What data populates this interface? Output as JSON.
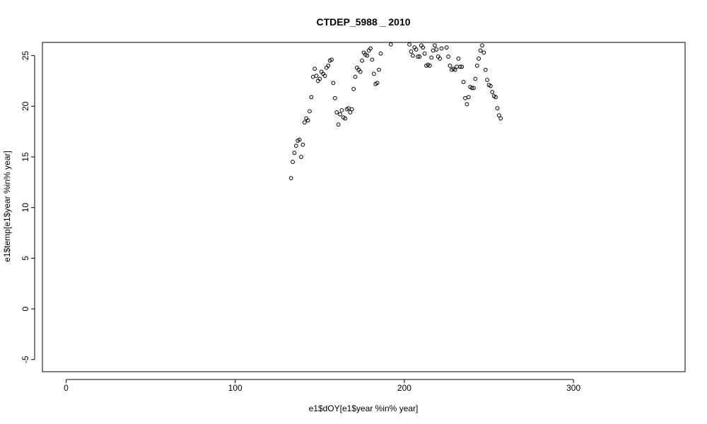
{
  "chart_data": {
    "type": "scatter",
    "title": "CTDEP_5988 _ 2010",
    "xlabel": "e1$dOY[e1$year %in% year]",
    "ylabel": "e1$temp[e1$year %in% year]",
    "xlim": [
      -14,
      366
    ],
    "ylim": [
      -6.2,
      26.3
    ],
    "xticks": [
      0,
      100,
      200,
      300
    ],
    "yticks": [
      -5,
      0,
      5,
      10,
      15,
      20,
      25
    ],
    "grid": false,
    "legend": "none",
    "marker": "open-circle",
    "colors": {
      "marker": "#000000",
      "axis": "#000000",
      "background": "#ffffff"
    },
    "points": [
      [
        133,
        12.9
      ],
      [
        134,
        14.5
      ],
      [
        135,
        15.4
      ],
      [
        136,
        16.1
      ],
      [
        137,
        16.6
      ],
      [
        138,
        16.7
      ],
      [
        139,
        15.0
      ],
      [
        140,
        16.2
      ],
      [
        141,
        18.4
      ],
      [
        142,
        18.8
      ],
      [
        143,
        18.6
      ],
      [
        144,
        19.5
      ],
      [
        145,
        20.9
      ],
      [
        146,
        22.9
      ],
      [
        147,
        23.7
      ],
      [
        148,
        23.0
      ],
      [
        149,
        22.5
      ],
      [
        150,
        22.7
      ],
      [
        151,
        23.4
      ],
      [
        152,
        23.2
      ],
      [
        153,
        23.0
      ],
      [
        154,
        23.8
      ],
      [
        155,
        24.0
      ],
      [
        156,
        24.5
      ],
      [
        157,
        24.6
      ],
      [
        158,
        22.3
      ],
      [
        159,
        20.8
      ],
      [
        160,
        19.4
      ],
      [
        161,
        18.2
      ],
      [
        162,
        19.2
      ],
      [
        163,
        19.6
      ],
      [
        164,
        18.9
      ],
      [
        165,
        18.8
      ],
      [
        166,
        19.7
      ],
      [
        167,
        19.8
      ],
      [
        168,
        19.4
      ],
      [
        169,
        19.7
      ],
      [
        170,
        21.7
      ],
      [
        171,
        22.9
      ],
      [
        172,
        23.8
      ],
      [
        173,
        23.6
      ],
      [
        174,
        23.4
      ],
      [
        175,
        24.5
      ],
      [
        176,
        25.3
      ],
      [
        177,
        25.1
      ],
      [
        178,
        25.0
      ],
      [
        179,
        25.5
      ],
      [
        180,
        25.7
      ],
      [
        181,
        24.6
      ],
      [
        182,
        23.2
      ],
      [
        183,
        22.2
      ],
      [
        184,
        22.3
      ],
      [
        185,
        23.6
      ],
      [
        186,
        25.2
      ],
      [
        192,
        26.1
      ],
      [
        203,
        26.1
      ],
      [
        204,
        25.4
      ],
      [
        205,
        25.0
      ],
      [
        206,
        25.8
      ],
      [
        207,
        25.6
      ],
      [
        208,
        24.9
      ],
      [
        209,
        24.9
      ],
      [
        210,
        26.0
      ],
      [
        211,
        25.8
      ],
      [
        212,
        25.2
      ],
      [
        213,
        24.0
      ],
      [
        214,
        24.1
      ],
      [
        215,
        24.0
      ],
      [
        216,
        24.8
      ],
      [
        217,
        25.5
      ],
      [
        218,
        26.0
      ],
      [
        219,
        25.6
      ],
      [
        220,
        24.9
      ],
      [
        221,
        24.7
      ],
      [
        222,
        25.7
      ],
      [
        225,
        25.8
      ],
      [
        226,
        24.9
      ],
      [
        227,
        24.0
      ],
      [
        228,
        23.6
      ],
      [
        229,
        23.7
      ],
      [
        230,
        23.6
      ],
      [
        231,
        23.9
      ],
      [
        232,
        24.7
      ],
      [
        233,
        23.9
      ],
      [
        234,
        23.9
      ],
      [
        235,
        22.4
      ],
      [
        236,
        20.8
      ],
      [
        237,
        20.2
      ],
      [
        238,
        20.9
      ],
      [
        239,
        21.9
      ],
      [
        240,
        21.8
      ],
      [
        241,
        21.8
      ],
      [
        242,
        22.7
      ],
      [
        243,
        24.0
      ],
      [
        244,
        24.7
      ],
      [
        245,
        25.5
      ],
      [
        246,
        26.0
      ],
      [
        247,
        25.3
      ],
      [
        248,
        23.6
      ],
      [
        249,
        22.6
      ],
      [
        250,
        22.1
      ],
      [
        251,
        22.0
      ],
      [
        252,
        21.4
      ],
      [
        253,
        21.0
      ],
      [
        254,
        20.9
      ],
      [
        255,
        19.8
      ],
      [
        256,
        19.1
      ],
      [
        257,
        18.8
      ]
    ]
  }
}
